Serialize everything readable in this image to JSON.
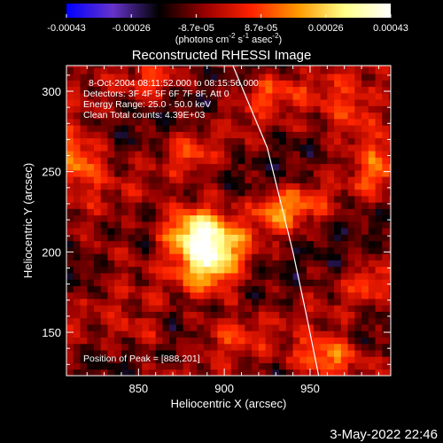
{
  "chart_data": {
    "type": "heatmap",
    "title": "Reconstructed RHESSI Image",
    "xlabel": "Heliocentric X (arcsec)",
    "ylabel": "Heliocentric Y (arcsec)",
    "xlim": [
      808,
      997
    ],
    "ylim": [
      123,
      316
    ],
    "x_ticks": [
      850,
      900,
      950
    ],
    "y_ticks": [
      150,
      200,
      250,
      300
    ],
    "colorbar": {
      "ticks": [
        "-0.00043",
        "-0.00026",
        "-8.7e-05",
        "8.7e-05",
        "0.00026",
        "0.00043"
      ],
      "label_prefix": "(photons cm",
      "label_sup1": "-2",
      "label_mid": " s",
      "label_sup2": "-1",
      "label_mid2": " asec",
      "label_sup3": "-2",
      "label_suffix": ")",
      "range": [
        -0.00043,
        0.00043
      ],
      "colors": [
        "#0000ff",
        "#6633cc",
        "#000000",
        "#990000",
        "#ff2200",
        "#ff9900",
        "#ffff88",
        "#ffffff"
      ]
    },
    "info_lines": [
      "8-Oct-2004 08:11:52.000 to 08:15:56.000",
      "Detectors: 3F 4F 5F 6F 7F 8F, Att 0",
      "Energy Range: 25.0 - 50.0 keV",
      "Clean     Total counts: 4.39E+03"
    ],
    "peak_label": "Position of Peak = [888,201]",
    "peak": [
      888,
      201
    ],
    "limb_line": [
      [
        905,
        316
      ],
      [
        925,
        265
      ],
      [
        940,
        200
      ],
      [
        948,
        160
      ],
      [
        955,
        123
      ]
    ],
    "blobs": [
      {
        "x": 892,
        "y": 200,
        "sx": 13,
        "sy": 18,
        "amp": 1.0
      },
      {
        "x": 878,
        "y": 214,
        "sx": 12,
        "sy": 10,
        "amp": 0.6
      },
      {
        "x": 812,
        "y": 258,
        "sx": 12,
        "sy": 12,
        "amp": 0.7
      },
      {
        "x": 960,
        "y": 135,
        "sx": 14,
        "sy": 9,
        "amp": 0.7
      },
      {
        "x": 975,
        "y": 285,
        "sx": 14,
        "sy": 14,
        "amp": 0.45
      },
      {
        "x": 930,
        "y": 225,
        "sx": 8,
        "sy": 8,
        "amp": 0.45
      },
      {
        "x": 990,
        "y": 250,
        "sx": 9,
        "sy": 12,
        "amp": 0.4
      },
      {
        "x": 860,
        "y": 305,
        "sx": 10,
        "sy": 8,
        "amp": 0.35
      },
      {
        "x": 925,
        "y": 300,
        "sx": 14,
        "sy": 8,
        "amp": 0.35
      },
      {
        "x": 945,
        "y": 230,
        "sx": 10,
        "sy": 7,
        "amp": 0.35
      },
      {
        "x": 850,
        "y": 150,
        "sx": 10,
        "sy": 8,
        "amp": 0.3
      },
      {
        "x": 905,
        "y": 150,
        "sx": 12,
        "sy": 8,
        "amp": 0.3
      },
      {
        "x": 880,
        "y": 260,
        "sx": 8,
        "sy": 8,
        "amp": 0.3
      },
      {
        "x": 985,
        "y": 180,
        "sx": 8,
        "sy": 8,
        "amp": 0.3
      },
      {
        "x": 835,
        "y": 200,
        "sx": 8,
        "sy": 10,
        "amp": 0.25
      }
    ]
  },
  "footer_timestamp": "3-May-2022 22:46"
}
